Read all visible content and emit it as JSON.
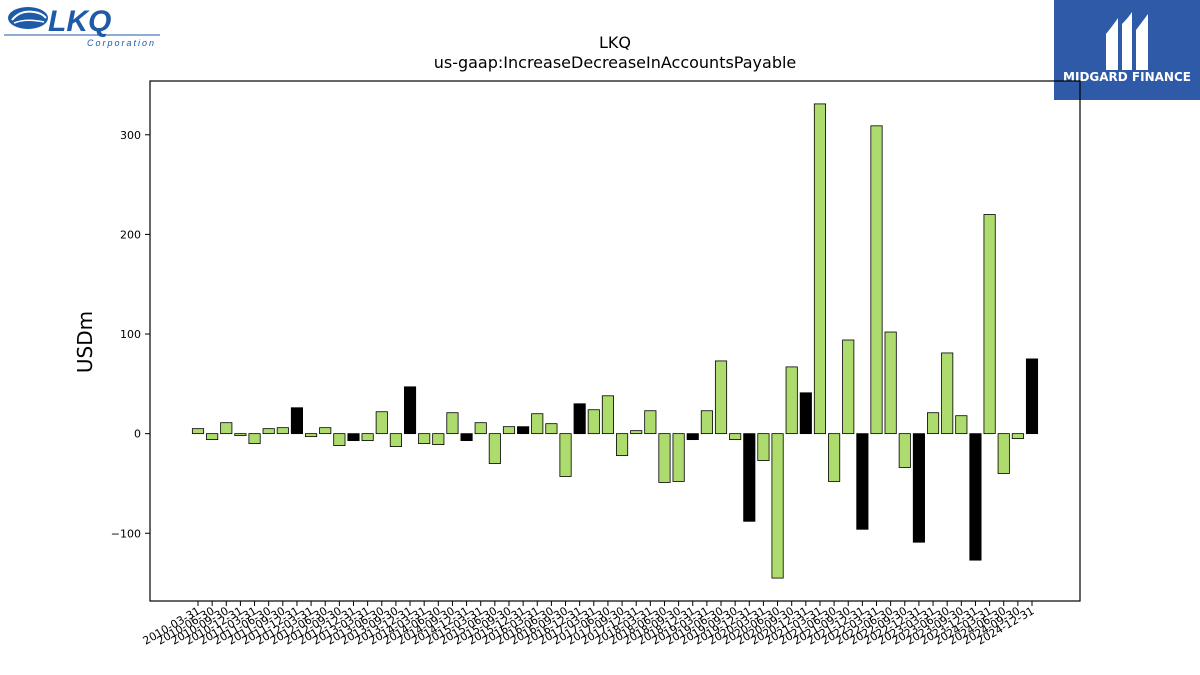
{
  "logos": {
    "left_text": "LKQ",
    "left_subtext": "Corporation",
    "right_text": "MIDGARD FINANCE"
  },
  "colors": {
    "bar_default": "#addb6d",
    "bar_highlight": "#000000",
    "logo_blue": "#1d5aa8",
    "badge_bg": "#2f5aa8"
  },
  "chart_data": {
    "type": "bar",
    "title": "LKQ",
    "subtitle": "us-gaap:IncreaseDecreaseInAccountsPayable",
    "xlabel": "",
    "ylabel": "USDm",
    "ylim": [
      -168,
      354
    ],
    "yticks": [
      -100,
      0,
      100,
      200,
      300
    ],
    "grid": false,
    "categories": [
      "2010-03-31",
      "2010-06-30",
      "2010-09-30",
      "2010-12-31",
      "2011-03-31",
      "2011-06-30",
      "2011-09-30",
      "2011-12-31",
      "2012-03-31",
      "2012-06-30",
      "2012-09-30",
      "2012-12-31",
      "2013-03-31",
      "2013-06-30",
      "2013-09-30",
      "2013-12-31",
      "2014-03-31",
      "2014-06-30",
      "2014-09-30",
      "2014-12-31",
      "2015-03-31",
      "2015-06-30",
      "2015-09-30",
      "2015-12-31",
      "2016-03-31",
      "2016-06-30",
      "2016-09-30",
      "2016-12-31",
      "2017-03-31",
      "2017-06-30",
      "2017-09-30",
      "2017-12-31",
      "2018-03-31",
      "2018-06-30",
      "2018-09-30",
      "2018-12-31",
      "2019-03-31",
      "2019-06-30",
      "2019-09-30",
      "2019-12-31",
      "2020-03-31",
      "2020-06-30",
      "2020-09-30",
      "2020-12-31",
      "2021-03-31",
      "2021-06-30",
      "2021-09-30",
      "2021-12-31",
      "2022-03-31",
      "2022-06-30",
      "2022-09-30",
      "2022-12-31",
      "2023-03-31",
      "2023-06-30",
      "2023-09-30",
      "2023-12-31",
      "2024-03-31",
      "2024-06-30",
      "2024-09-30",
      "2024-12-31"
    ],
    "values": [
      5,
      -6,
      11,
      -2,
      -10,
      5,
      6,
      26,
      -3,
      6,
      -12,
      -7,
      -7,
      22,
      -13,
      47,
      -10,
      -11,
      21,
      -7,
      11,
      -30,
      7,
      7,
      20,
      10,
      -43,
      30,
      24,
      38,
      -22,
      3,
      23,
      -49,
      -48,
      -6,
      23,
      73,
      -6,
      -88,
      -27,
      -145,
      67,
      41,
      331,
      -48,
      94,
      -96,
      309,
      102,
      -34,
      -109,
      21,
      81,
      18,
      -127,
      220,
      -40,
      -5,
      75
    ],
    "highlight": [
      false,
      false,
      false,
      false,
      false,
      false,
      false,
      true,
      false,
      false,
      false,
      true,
      false,
      false,
      false,
      true,
      false,
      false,
      false,
      true,
      false,
      false,
      false,
      true,
      false,
      false,
      false,
      true,
      false,
      false,
      false,
      false,
      false,
      false,
      false,
      true,
      false,
      false,
      false,
      true,
      false,
      false,
      false,
      true,
      false,
      false,
      false,
      true,
      false,
      false,
      false,
      true,
      false,
      false,
      false,
      true,
      false,
      false,
      false,
      true
    ]
  }
}
